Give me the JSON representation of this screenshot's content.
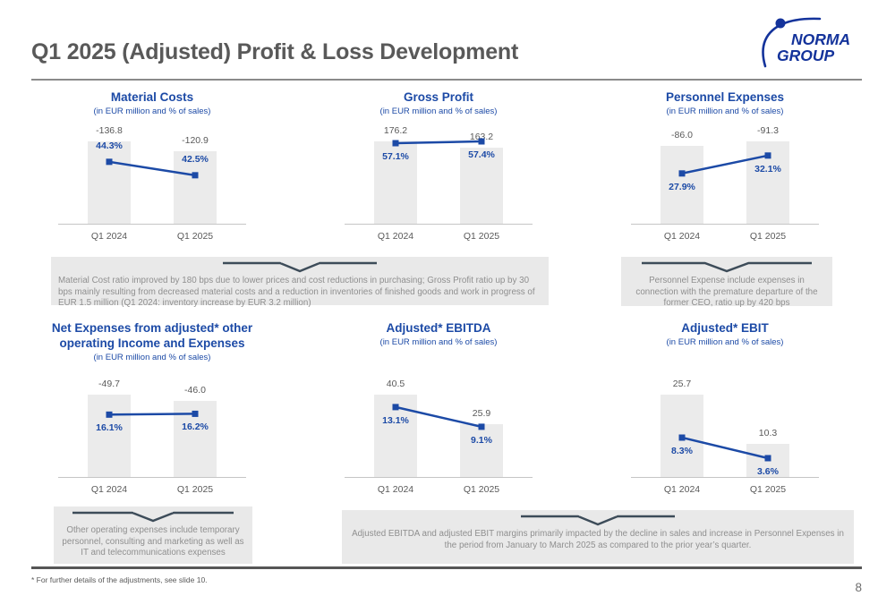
{
  "slide": {
    "title": "Q1 2025 (Adjusted) Profit & Loss Development",
    "footnote": "* For further details of the adjustments, see slide 10.",
    "page_number": "8",
    "logo": {
      "line1": "NORMA",
      "line2": "GROUP"
    }
  },
  "colors": {
    "brand_blue": "#14339b",
    "chart_blue": "#1c4aa6",
    "bar_gray": "#ebebeb",
    "text_gray": "#595959",
    "callout_bg": "#e9e9e9",
    "callout_text": "#8f8f8f",
    "chevron": "#3d4c59",
    "axis_gray": "#c6c6c6"
  },
  "chart_data": [
    {
      "id": "material-costs",
      "type": "bar",
      "line_overlay": true,
      "title": "Material Costs",
      "subtitle": "(in EUR million and % of sales)",
      "categories": [
        "Q1 2024",
        "Q1 2025"
      ],
      "bar_values": [
        -136.8,
        -120.9
      ],
      "bar_labels": [
        "-136.8",
        "-120.9"
      ],
      "pct_values": [
        44.3,
        42.5
      ],
      "pct_labels": [
        "44.3%",
        "42.5%"
      ],
      "pct_axis": [
        36,
        49.2
      ],
      "pct_label_side": "above"
    },
    {
      "id": "gross-profit",
      "type": "bar",
      "line_overlay": true,
      "title": "Gross Profit",
      "subtitle": "(in EUR million and % of sales)",
      "categories": [
        "Q1 2024",
        "Q1 2025"
      ],
      "bar_values": [
        176.2,
        163.2
      ],
      "bar_labels": [
        "176.2",
        "163.2"
      ],
      "pct_values": [
        57.1,
        57.4
      ],
      "pct_labels": [
        "57.1%",
        "57.4%"
      ],
      "pct_axis": [
        43.6,
        60.1
      ],
      "pct_label_side": "below"
    },
    {
      "id": "personnel-expenses",
      "type": "bar",
      "line_overlay": true,
      "title": "Personnel Expenses",
      "subtitle": "(in EUR million and % of sales)",
      "categories": [
        "Q1 2024",
        "Q1 2025"
      ],
      "bar_values": [
        -86.0,
        -91.3
      ],
      "bar_labels": [
        "-86.0",
        "-91.3"
      ],
      "pct_values": [
        27.9,
        32.1
      ],
      "pct_labels": [
        "27.9%",
        "32.1%"
      ],
      "pct_axis": [
        16.1,
        39.2
      ],
      "pct_label_side": "below"
    },
    {
      "id": "net-other-operating",
      "type": "bar",
      "line_overlay": true,
      "title": "Net Expenses from adjusted* other\noperating Income and Expenses",
      "subtitle": "(in EUR million and % of sales)",
      "categories": [
        "Q1 2024",
        "Q1 2025"
      ],
      "bar_values": [
        -49.7,
        -46.0
      ],
      "bar_labels": [
        "-49.7",
        "-46.0"
      ],
      "pct_values": [
        16.1,
        16.2
      ],
      "pct_labels": [
        "16.1%",
        "16.2%"
      ],
      "pct_axis": [
        8.5,
        20.5
      ],
      "pct_label_side": "below"
    },
    {
      "id": "adjusted-ebitda",
      "type": "bar",
      "line_overlay": true,
      "title": "Adjusted* EBITDA",
      "subtitle": "(in EUR million and % of sales)",
      "categories": [
        "Q1 2024",
        "Q1 2025"
      ],
      "bar_values": [
        40.5,
        25.9
      ],
      "bar_labels": [
        "40.5",
        "25.9"
      ],
      "pct_values": [
        13.1,
        9.1
      ],
      "pct_labels": [
        "13.1%",
        "9.1%"
      ],
      "pct_axis": [
        -1.1,
        18.9
      ],
      "pct_label_side": "below"
    },
    {
      "id": "adjusted-ebit",
      "type": "bar",
      "line_overlay": true,
      "title": "Adjusted* EBIT",
      "subtitle": "(in EUR million and % of sales)",
      "categories": [
        "Q1 2024",
        "Q1 2025"
      ],
      "bar_values": [
        25.7,
        10.3
      ],
      "bar_labels": [
        "25.7",
        "10.3"
      ],
      "pct_values": [
        8.3,
        3.6
      ],
      "pct_labels": [
        "8.3%",
        "3.6%"
      ],
      "pct_axis": [
        -0.7,
        21.8
      ],
      "pct_label_side": "below"
    }
  ],
  "callouts": [
    {
      "id": "material-gross-note",
      "text": "Material Cost ratio improved by 180 bps due to lower prices and cost reductions in purchasing; Gross Profit ratio up by 30 bps mainly resulting from decreased material costs and a reduction in inventories of finished goods and work in progress of EUR 1.5 million (Q1 2024: inventory increase by EUR 3.2 million)"
    },
    {
      "id": "personnel-note",
      "text": "Personnel Expense include expenses in connection with the premature departure of the former CEO, ratio up by 420 bps"
    },
    {
      "id": "other-opex-note",
      "text": "Other operating expenses include temporary personnel, consulting and marketing as well as IT and telecommunications expenses"
    },
    {
      "id": "ebitda-ebit-note",
      "text": "Adjusted EBITDA and adjusted EBIT margins primarily impacted by the decline in sales and increase in Personnel Expenses in the period from January to March 2025 as compared to the prior year’s quarter."
    }
  ]
}
